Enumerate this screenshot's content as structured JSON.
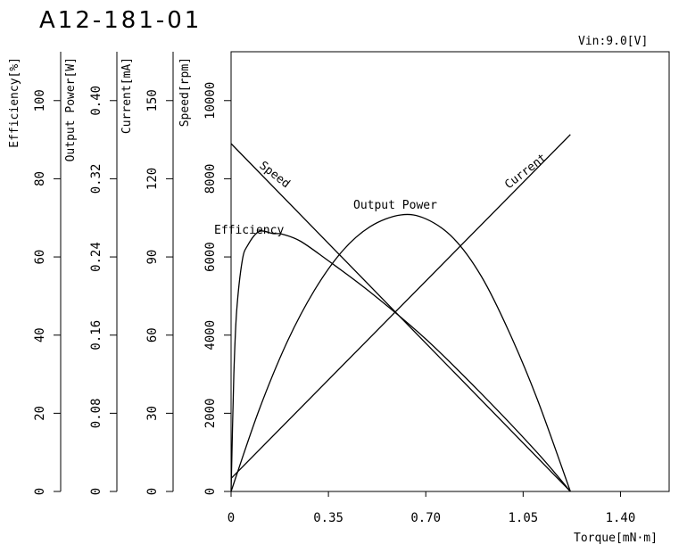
{
  "chart_data": {
    "type": "line",
    "title": "A12-181-01",
    "annotation": "Vin:9.0[V]",
    "xlabel": "Torque[mN·m]",
    "x_ticks": [
      "0",
      "0.35",
      "0.70",
      "1.05",
      "1.40"
    ],
    "xlim": [
      0,
      1.575
    ],
    "y_axes": [
      {
        "key": "efficiency",
        "label": "Efficiency[%]",
        "ticks": [
          "0",
          "20",
          "40",
          "60",
          "80",
          "100"
        ],
        "ylim": [
          0,
          112.5
        ]
      },
      {
        "key": "power",
        "label": "Output Power[W]",
        "ticks": [
          "0",
          "0.08",
          "0.16",
          "0.24",
          "0.32",
          "0.40"
        ],
        "ylim": [
          0,
          0.45
        ]
      },
      {
        "key": "current",
        "label": "Current[mA]",
        "ticks": [
          "0",
          "30",
          "60",
          "90",
          "120",
          "150"
        ],
        "ylim": [
          0,
          168.75
        ]
      },
      {
        "key": "speed",
        "label": "Speed[rpm]",
        "ticks": [
          "0",
          "2000",
          "4000",
          "6000",
          "8000",
          "10000"
        ],
        "ylim": [
          0,
          11250
        ]
      }
    ],
    "series": [
      {
        "name": "Speed",
        "axis": "speed",
        "x": [
          0,
          1.22
        ],
        "y": [
          8900,
          0
        ]
      },
      {
        "name": "Current",
        "axis": "current",
        "x": [
          0,
          1.22
        ],
        "y": [
          5,
          137
        ]
      },
      {
        "name": "Output Power",
        "axis": "power",
        "x": [
          0,
          0.1,
          0.2,
          0.3,
          0.4,
          0.5,
          0.61,
          0.7,
          0.8,
          0.9,
          1.0,
          1.1,
          1.22
        ],
        "y": [
          0,
          0.083,
          0.152,
          0.206,
          0.246,
          0.271,
          0.283,
          0.279,
          0.259,
          0.22,
          0.163,
          0.095,
          0
        ]
      },
      {
        "name": "Efficiency",
        "axis": "efficiency",
        "x": [
          0,
          0.01,
          0.02,
          0.04,
          0.06,
          0.1,
          0.15,
          0.185,
          0.25,
          0.35,
          0.5,
          0.7,
          0.9,
          1.1,
          1.22
        ],
        "y": [
          0,
          30,
          46,
          59,
          63,
          66.5,
          66,
          65.8,
          64,
          59,
          51,
          39,
          25,
          10,
          0
        ]
      }
    ]
  }
}
